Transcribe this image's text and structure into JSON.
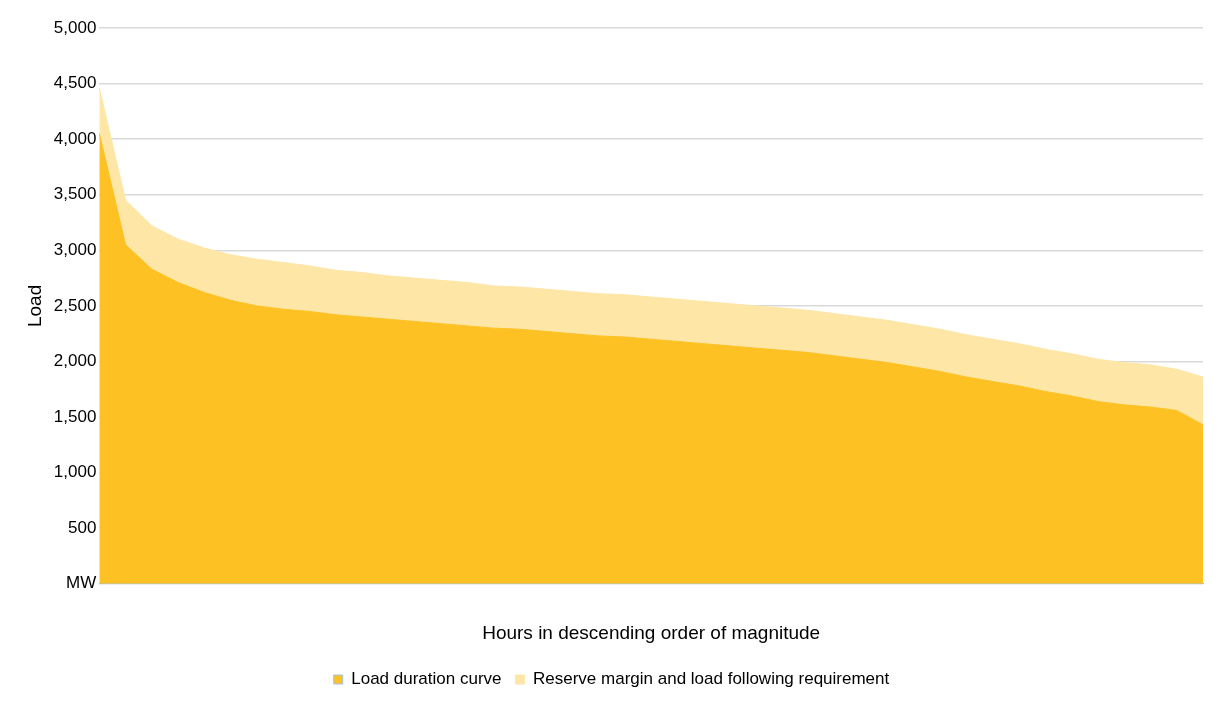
{
  "chart_data": {
    "type": "area",
    "stacked": true,
    "xlabel": "Hours in descending order of magnitude",
    "ylabel": "Load",
    "categories": [
      null,
      null,
      null,
      null,
      null,
      null,
      null,
      null,
      null,
      null,
      null,
      null,
      null,
      null,
      null,
      null,
      null,
      null,
      null,
      null,
      null,
      null,
      null,
      null,
      null,
      null,
      null,
      null,
      null,
      null,
      null,
      null,
      null,
      null,
      null,
      null,
      null,
      null,
      null,
      null,
      null,
      null,
      null
    ],
    "ylim": [
      0,
      5000
    ],
    "yticks": [
      {
        "value": 0,
        "label": "MW"
      },
      {
        "value": 500,
        "label": "500"
      },
      {
        "value": 1000,
        "label": "1,000"
      },
      {
        "value": 1500,
        "label": "1,500"
      },
      {
        "value": 2000,
        "label": "2,000"
      },
      {
        "value": 2500,
        "label": "2,500"
      },
      {
        "value": 3000,
        "label": "3,000"
      },
      {
        "value": 3500,
        "label": "3,500"
      },
      {
        "value": 4000,
        "label": "4,000"
      },
      {
        "value": 4500,
        "label": "4,500"
      },
      {
        "value": 5000,
        "label": "5,000"
      }
    ],
    "grid": "y",
    "legend": "bottom",
    "marker": "none",
    "series": [
      {
        "name": "Load duration curve",
        "color": "#fdc123",
        "values": [
          4050,
          3050,
          2830,
          2710,
          2620,
          2550,
          2500,
          2470,
          2450,
          2420,
          2400,
          2380,
          2360,
          2340,
          2320,
          2300,
          2290,
          2270,
          2250,
          2230,
          2220,
          2200,
          2180,
          2160,
          2140,
          2120,
          2100,
          2080,
          2050,
          2020,
          1990,
          1950,
          1910,
          1860,
          1820,
          1780,
          1730,
          1690,
          1640,
          1610,
          1590,
          1560,
          1430
        ]
      },
      {
        "name": "Reserve margin and load following requirement",
        "color": "#fee6a7",
        "values": [
          410,
          400,
          390,
          390,
          400,
          410,
          420,
          420,
          410,
          400,
          400,
          390,
          390,
          390,
          390,
          380,
          380,
          380,
          380,
          380,
          380,
          380,
          380,
          380,
          380,
          380,
          380,
          380,
          380,
          380,
          380,
          380,
          380,
          380,
          380,
          380,
          380,
          380,
          380,
          380,
          380,
          370,
          430
        ]
      }
    ]
  }
}
